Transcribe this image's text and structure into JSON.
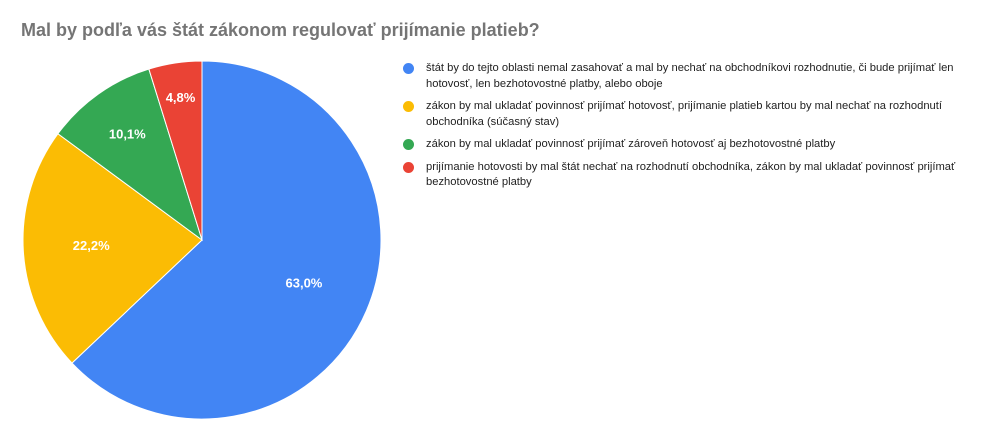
{
  "chart_data": {
    "type": "pie",
    "title": "Mal by podľa vás štát zákonom regulovať prijímanie platieb?",
    "slices": [
      {
        "label": "štát by do tejto oblasti nemal zasahovať a mal by nechať na obchodníkovi rozhodnutie, či bude prijímať len hotovosť, len bezhotovostné platby, alebo oboje",
        "value": 63.0,
        "value_label": "63,0%",
        "color": "#4285f4"
      },
      {
        "label": "zákon by mal ukladať povinnosť prijímať hotovosť, prijímanie platieb kartou by mal nechať na rozhodnutí obchodníka (súčasný stav)",
        "value": 22.2,
        "value_label": "22,2%",
        "color": "#fbbc04"
      },
      {
        "label": "zákon by mal ukladať povinnosť prijímať zároveň hotovosť aj bezhotovostné platby",
        "value": 10.1,
        "value_label": "10,1%",
        "color": "#34a853"
      },
      {
        "label": "prijímanie hotovosti by mal štát nechať na rozhodnutí obchodníka, zákon by mal ukladať povinnosť prijímať bezhotovostné platby",
        "value": 4.8,
        "value_label": "4,8%",
        "color": "#ea4335"
      }
    ],
    "legend_position": "right"
  }
}
